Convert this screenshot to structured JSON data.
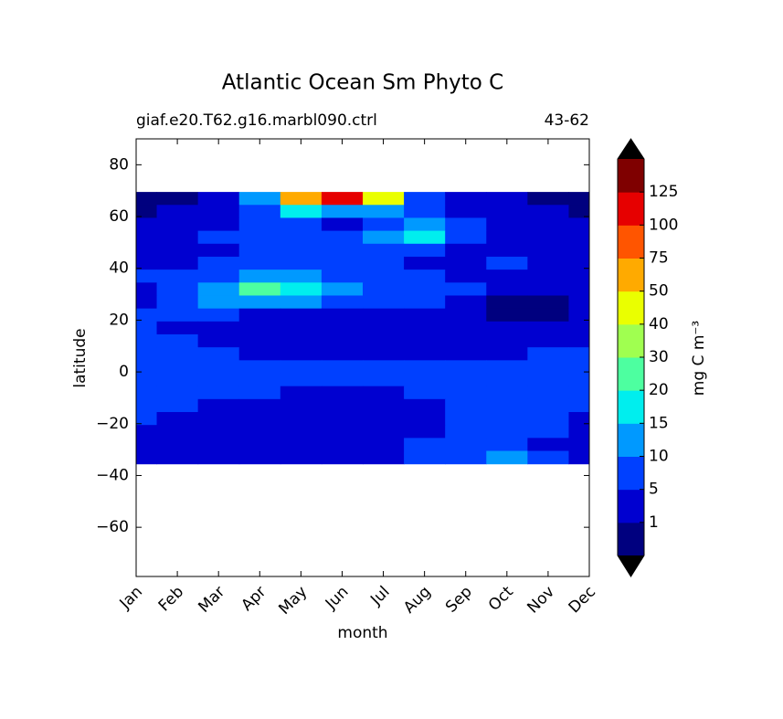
{
  "chart_data": {
    "type": "contourf",
    "title": "Atlantic Ocean Sm Phyto C",
    "subtitle_left": "giaf.e20.T62.g16.marbl090.ctrl",
    "subtitle_right": "43-62",
    "xlabel": "month",
    "ylabel": "latitude",
    "categories": [
      "Jan",
      "Feb",
      "Mar",
      "Apr",
      "May",
      "Jun",
      "Jul",
      "Aug",
      "Sep",
      "Oct",
      "Nov",
      "Dec"
    ],
    "y": [
      67,
      62,
      57,
      52,
      47,
      42,
      37,
      32,
      27,
      22,
      17,
      12,
      7,
      2,
      -3,
      -8,
      -13,
      -18,
      -23,
      -28,
      -33
    ],
    "z": [
      [
        0.5,
        0.5,
        3,
        12,
        60,
        110,
        40,
        8,
        3,
        3,
        0.5,
        0.5
      ],
      [
        0.5,
        3,
        3,
        8,
        18,
        12,
        12,
        8,
        3,
        3,
        3,
        0.5
      ],
      [
        3,
        3,
        3,
        7,
        7,
        3,
        7,
        12,
        7,
        3,
        3,
        3
      ],
      [
        3,
        3,
        7,
        7,
        7,
        7,
        12,
        18,
        7,
        3,
        3,
        3
      ],
      [
        3,
        3,
        3,
        7,
        7,
        7,
        7,
        7,
        3,
        3,
        3,
        3
      ],
      [
        3,
        3,
        7,
        7,
        7,
        7,
        7,
        3,
        3,
        7,
        3,
        3
      ],
      [
        7,
        7,
        7,
        12,
        12,
        7,
        7,
        7,
        3,
        3,
        3,
        3
      ],
      [
        3,
        7,
        12,
        22,
        18,
        12,
        7,
        7,
        7,
        3,
        3,
        3
      ],
      [
        3,
        7,
        12,
        12,
        12,
        7,
        7,
        7,
        3,
        0.5,
        0.5,
        3
      ],
      [
        7,
        7,
        7,
        3,
        3,
        3,
        3,
        3,
        3,
        0.5,
        0.5,
        3
      ],
      [
        7,
        3,
        3,
        3,
        3,
        3,
        3,
        3,
        3,
        3,
        3,
        3
      ],
      [
        7,
        7,
        3,
        3,
        3,
        3,
        3,
        3,
        3,
        3,
        3,
        3
      ],
      [
        7,
        7,
        7,
        3,
        3,
        3,
        3,
        3,
        3,
        3,
        7,
        7
      ],
      [
        7,
        7,
        7,
        7,
        7,
        7,
        7,
        7,
        7,
        7,
        7,
        7
      ],
      [
        7,
        7,
        7,
        7,
        7,
        7,
        7,
        7,
        7,
        7,
        7,
        7
      ],
      [
        7,
        7,
        7,
        7,
        3,
        3,
        3,
        7,
        7,
        7,
        7,
        7
      ],
      [
        7,
        7,
        3,
        3,
        3,
        3,
        3,
        3,
        7,
        7,
        7,
        7
      ],
      [
        7,
        3,
        3,
        3,
        3,
        3,
        3,
        3,
        7,
        7,
        7,
        3
      ],
      [
        3,
        3,
        3,
        3,
        3,
        3,
        3,
        3,
        7,
        7,
        7,
        3
      ],
      [
        3,
        3,
        3,
        3,
        3,
        3,
        3,
        7,
        7,
        7,
        3,
        3
      ],
      [
        3,
        3,
        3,
        3,
        3,
        3,
        3,
        7,
        7,
        12,
        7,
        3
      ]
    ],
    "ylim": [
      -79,
      90
    ],
    "yticks": [
      {
        "value": -60,
        "label": "−60"
      },
      {
        "value": -40,
        "label": "−40"
      },
      {
        "value": -20,
        "label": "−20"
      },
      0,
      20,
      40,
      60,
      80
    ],
    "levels": [
      1,
      5,
      10,
      15,
      20,
      30,
      40,
      50,
      75,
      100,
      125
    ],
    "colors": [
      "#00007f",
      "#0000d0",
      "#0040ff",
      "#0099ff",
      "#00eeee",
      "#4dffa0",
      "#a0ff50",
      "#eaff00",
      "#ffaa00",
      "#ff5500",
      "#e60000",
      "#7f0000"
    ],
    "extend_color": "#000000",
    "colorbar_label": "mg C m⁻³"
  }
}
